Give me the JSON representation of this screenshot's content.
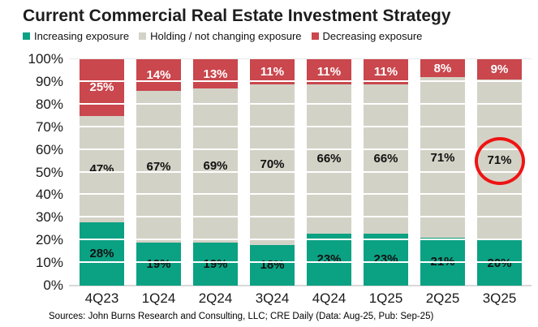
{
  "title": "Current Commercial Real Estate Investment Strategy",
  "legend": [
    {
      "label": "Increasing exposure",
      "color": "#0ba183"
    },
    {
      "label": "Holding / not changing exposure",
      "color": "#d3d2c6"
    },
    {
      "label": "Decreasing exposure",
      "color": "#c9474d"
    }
  ],
  "chart_data": {
    "type": "bar",
    "stacked": true,
    "title": "Current Commercial Real Estate Investment Strategy",
    "categories": [
      "4Q23",
      "1Q24",
      "2Q24",
      "3Q24",
      "4Q24",
      "1Q25",
      "2Q25",
      "3Q25"
    ],
    "series": [
      {
        "name": "Increasing exposure",
        "color": "#0ba183",
        "label_color": "#111111",
        "values": [
          28,
          19,
          19,
          18,
          23,
          23,
          21,
          20
        ]
      },
      {
        "name": "Holding / not changing exposure",
        "color": "#d3d2c6",
        "label_color": "#111111",
        "values": [
          47,
          67,
          69,
          70,
          66,
          66,
          71,
          71
        ]
      },
      {
        "name": "Decreasing exposure",
        "color": "#c9474d",
        "label_color": "#ffffff",
        "values": [
          25,
          14,
          13,
          11,
          11,
          11,
          8,
          9
        ]
      }
    ],
    "value_suffix": "%",
    "y_ticks": [
      "100%",
      "90%",
      "80%",
      "70%",
      "60%",
      "50%",
      "40%",
      "30%",
      "20%",
      "10%",
      "0%"
    ],
    "ylim": [
      0,
      100
    ],
    "grid": true,
    "legend_position": "top",
    "annotation": {
      "type": "circle",
      "category": "3Q25",
      "series": "Holding / not changing exposure",
      "value_text": "71%",
      "color": "#ee1414"
    }
  },
  "source_note": "Sources: John Burns Research and Consulting, LLC; CRE Daily (Data: Aug-25, Pub: Sep-25)"
}
